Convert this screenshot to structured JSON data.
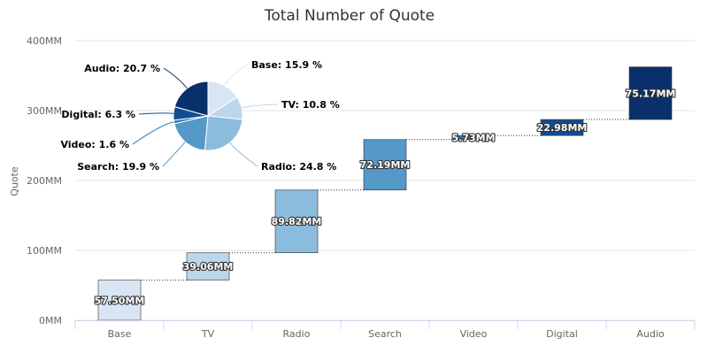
{
  "chart_data": {
    "type": "bar",
    "subtype": "waterfall-with-pie",
    "title": "Total Number of Quote",
    "ylabel": "Quote",
    "xlabel": "",
    "ylim": [
      0,
      400
    ],
    "y_unit_suffix": "MM",
    "y_ticks": [
      "0MM",
      "100MM",
      "200MM",
      "300MM",
      "400MM"
    ],
    "grid": true,
    "categories": [
      "Base",
      "TV",
      "Radio",
      "Search",
      "Video",
      "Digital",
      "Audio"
    ],
    "values": [
      57.5,
      39.06,
      89.82,
      72.19,
      5.73,
      22.98,
      75.17
    ],
    "value_labels": [
      "57.50MM",
      "39.06MM",
      "89.82MM",
      "72.19MM",
      "5.73MM",
      "22.98MM",
      "75.17MM"
    ],
    "colors": [
      "#d7e5f4",
      "#bcd6ea",
      "#8bbcdd",
      "#5599c9",
      "#2b76b4",
      "#114d93",
      "#09306a"
    ],
    "pie": {
      "labels": [
        "Base",
        "TV",
        "Radio",
        "Search",
        "Video",
        "Digital",
        "Audio"
      ],
      "percents": [
        15.9,
        10.8,
        24.8,
        19.9,
        1.6,
        6.3,
        20.7
      ],
      "value_labels": [
        "Base: 15.9 %",
        "TV: 10.8 %",
        "Radio: 24.8 %",
        "Search: 19.9 %",
        "Video: 1.6 %",
        "Digital: 6.3 %",
        "Audio: 20.7 %"
      ]
    }
  }
}
